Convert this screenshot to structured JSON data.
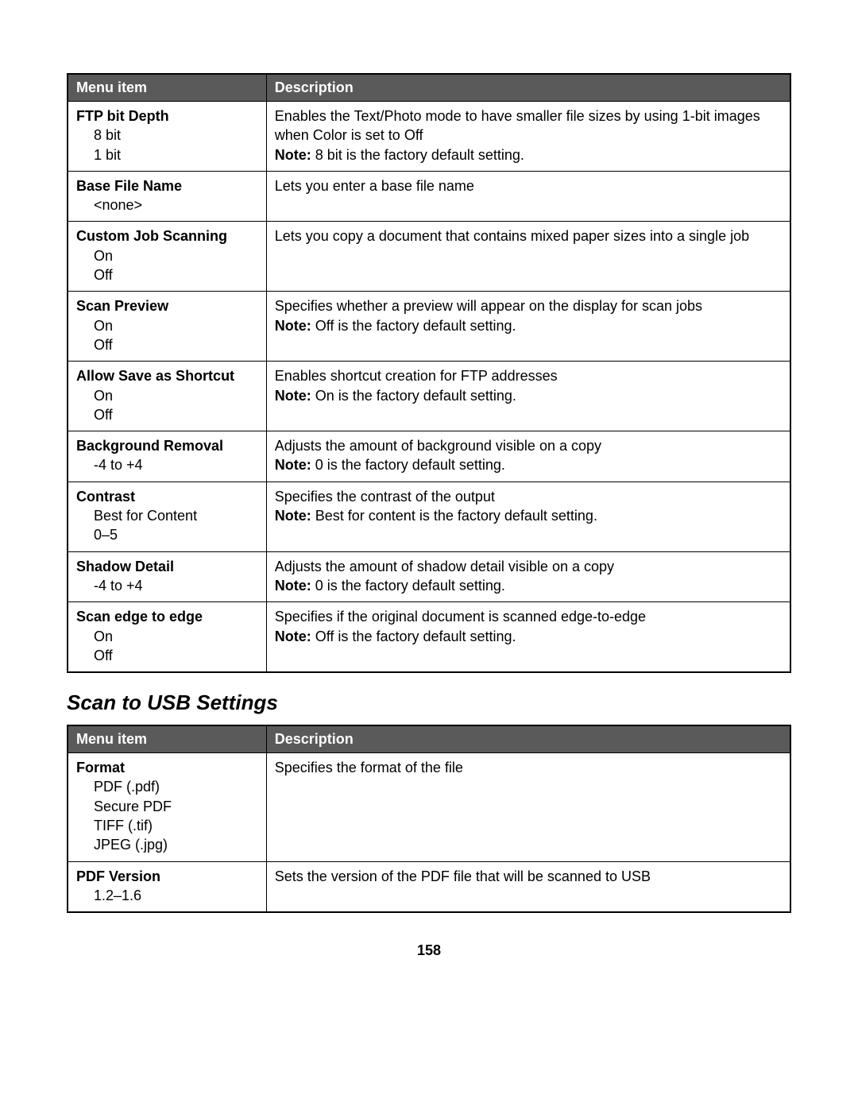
{
  "table1": {
    "headers": {
      "menu": "Menu item",
      "desc": "Description"
    },
    "rows": [
      {
        "title": "FTP bit Depth",
        "opts": [
          "8 bit",
          "1 bit"
        ],
        "desc": "Enables the Text/Photo mode to have smaller file sizes by using 1-bit images when Color is set to Off",
        "note_label": "Note: ",
        "note": "8 bit is the factory default setting."
      },
      {
        "title": "Base File Name",
        "opts": [
          "<none>"
        ],
        "desc": "Lets you enter a base file name"
      },
      {
        "title": "Custom Job Scanning",
        "opts": [
          "On",
          "Off"
        ],
        "desc": "Lets you copy a document that contains mixed paper sizes into a single job"
      },
      {
        "title": "Scan Preview",
        "opts": [
          "On",
          "Off"
        ],
        "desc": "Specifies whether a preview will appear on the display for scan jobs",
        "note_label": "Note: ",
        "note": "Off is the factory default setting."
      },
      {
        "title": "Allow Save as Shortcut",
        "opts": [
          "On",
          "Off"
        ],
        "desc": "Enables shortcut creation for FTP addresses",
        "note_label": "Note: ",
        "note": "On is the factory default setting."
      },
      {
        "title": "Background Removal",
        "opts": [
          "-4 to +4"
        ],
        "desc": "Adjusts the amount of background visible on a copy",
        "note_label": "Note: ",
        "note": "0 is the factory default setting."
      },
      {
        "title": "Contrast",
        "opts": [
          "Best for Content",
          "0–5"
        ],
        "desc": "Specifies the contrast of the output",
        "note_label": "Note: ",
        "note": "Best for content is the factory default setting."
      },
      {
        "title": "Shadow Detail",
        "opts": [
          "-4 to +4"
        ],
        "desc": "Adjusts the amount of shadow detail visible on a copy",
        "note_label": "Note: ",
        "note": "0 is the factory default setting."
      },
      {
        "title": "Scan edge to edge",
        "opts": [
          "On",
          "Off"
        ],
        "desc": "Specifies if the original document is scanned edge-to-edge",
        "note_label": "Note: ",
        "note": "Off is the factory default setting."
      }
    ]
  },
  "section_heading": "Scan to USB Settings",
  "table2": {
    "headers": {
      "menu": "Menu item",
      "desc": "Description"
    },
    "rows": [
      {
        "title": "Format",
        "opts": [
          "PDF (.pdf)",
          "Secure PDF",
          "TIFF (.tif)",
          "JPEG (.jpg)"
        ],
        "desc": "Specifies the format of the file"
      },
      {
        "title": "PDF Version",
        "opts": [
          "1.2–1.6"
        ],
        "desc": "Sets the version of the PDF file that will be scanned to USB"
      }
    ]
  },
  "page_number": "158"
}
